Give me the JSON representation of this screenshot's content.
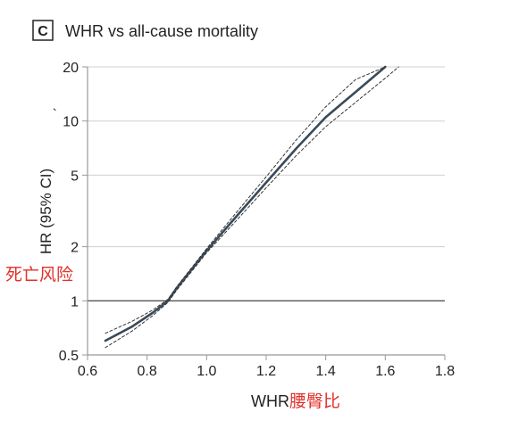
{
  "chart_data": {
    "type": "line",
    "panel_label": "C",
    "title": "WHR vs all-cause mortality",
    "xlabel": "WHR",
    "xlabel_annotation": "腰臀比",
    "ylabel": "HR (95% CI)",
    "ylabel_annotation": "死亡风险",
    "x_ticks": [
      "0.6",
      "0.8",
      "1.0",
      "1.2",
      "1.4",
      "1.6",
      "1.8"
    ],
    "x_tick_values": [
      0.6,
      0.8,
      1.0,
      1.2,
      1.4,
      1.6,
      1.8
    ],
    "y_ticks": [
      "0.5",
      "1",
      "2",
      "5",
      "10",
      "20"
    ],
    "y_tick_values": [
      0.5,
      1,
      2,
      5,
      10,
      20
    ],
    "y_tick_prefix_10": "`",
    "xlim": [
      0.6,
      1.8
    ],
    "ylim": [
      0.5,
      20
    ],
    "y_scale": "log",
    "reference_line_y": 1,
    "grid": "horizontal",
    "series": [
      {
        "role": "estimate",
        "style": "solid",
        "x": [
          0.66,
          0.75,
          0.82,
          0.87,
          0.9,
          1.0,
          1.1,
          1.2,
          1.3,
          1.4,
          1.5,
          1.6
        ],
        "y": [
          0.6,
          0.72,
          0.86,
          1.0,
          1.18,
          1.9,
          2.95,
          4.55,
          7.0,
          10.5,
          14.5,
          20.0
        ]
      },
      {
        "role": "upper-ci",
        "style": "dashed",
        "x": [
          0.66,
          0.75,
          0.82,
          0.87,
          0.9,
          1.0,
          1.1,
          1.2,
          1.3,
          1.4,
          1.5,
          1.6
        ],
        "y": [
          0.66,
          0.77,
          0.89,
          1.02,
          1.2,
          1.95,
          3.1,
          4.9,
          7.8,
          12.0,
          17.0,
          20.0
        ]
      },
      {
        "role": "lower-ci",
        "style": "dashed",
        "x": [
          0.66,
          0.75,
          0.82,
          0.87,
          0.9,
          1.0,
          1.1,
          1.2,
          1.3,
          1.4,
          1.5,
          1.6,
          1.645
        ],
        "y": [
          0.55,
          0.68,
          0.83,
          0.98,
          1.15,
          1.85,
          2.8,
          4.25,
          6.4,
          9.3,
          12.7,
          17.3,
          20.0
        ]
      }
    ],
    "colors": {
      "estimate": "#3a4a5a",
      "ci": "#333333",
      "axis": "#999999",
      "reference": "#555555",
      "annotation": "#e0302a"
    }
  }
}
